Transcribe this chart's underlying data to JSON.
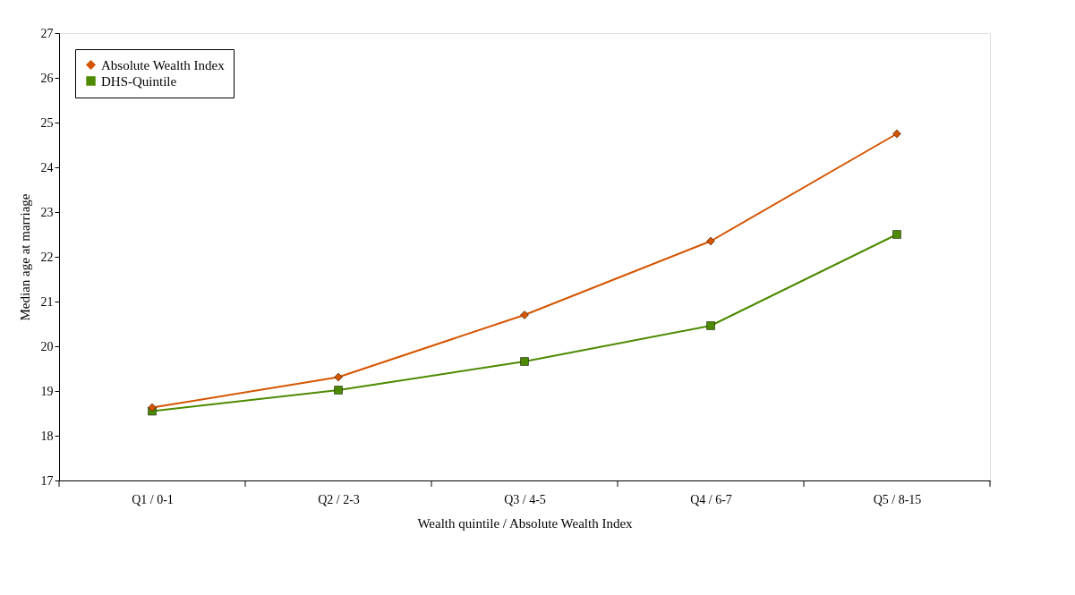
{
  "chart_data": {
    "type": "line",
    "xlabel": "Wealth quintile / Absolute Wealth Index",
    "ylabel": "Median age at marriage",
    "categories": [
      "Q1 / 0-1",
      "Q2 / 2-3",
      "Q3 / 4-5",
      "Q4 / 6-7",
      "Q5 / 8-15"
    ],
    "series": [
      {
        "name": "Absolute Wealth Index",
        "color": "#d45500",
        "marker": "diamond",
        "values": [
          18.63,
          19.31,
          20.7,
          22.35,
          24.75
        ]
      },
      {
        "name": "DHS-Quintile",
        "color": "#4d8a00",
        "marker": "square",
        "values": [
          18.55,
          19.02,
          19.66,
          20.46,
          22.5
        ]
      }
    ],
    "ylim": [
      17,
      27
    ],
    "yticks": [
      17,
      18,
      19,
      20,
      21,
      22,
      23,
      24,
      25,
      26,
      27
    ],
    "grid": false,
    "legend": "top left",
    "line_style": "solid"
  }
}
